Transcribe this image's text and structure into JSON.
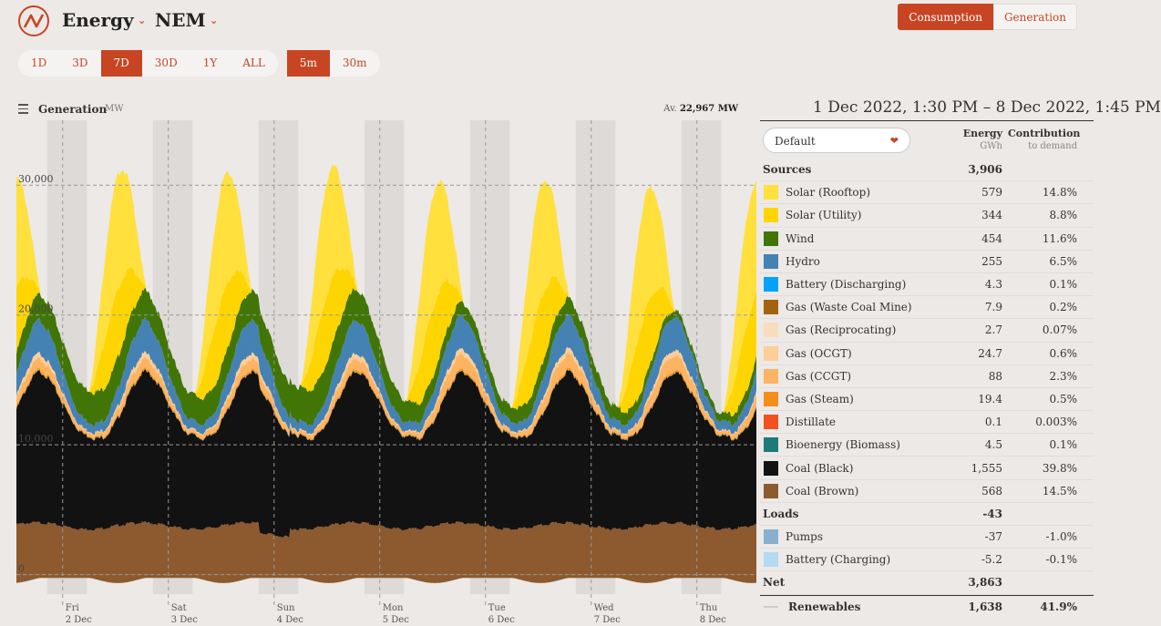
{
  "header": {
    "region_title": "Energy",
    "market_title": "NEM",
    "toggle": [
      "Consumption",
      "Generation"
    ],
    "toggle_active": "Consumption"
  },
  "range": {
    "periods": [
      "1D",
      "3D",
      "7D",
      "30D",
      "1Y",
      "ALL"
    ],
    "period_active": "7D",
    "intervals": [
      "5m",
      "30m"
    ],
    "interval_active": "5m"
  },
  "chart_head": {
    "title": "Generation",
    "unit": "MW",
    "avg_label": "Av.",
    "avg_value": "22,967 MW"
  },
  "chart_data": {
    "type": "area",
    "title": "Generation",
    "ylabel": "MW",
    "ylim": [
      -1500,
      35000
    ],
    "yticks": [
      0,
      10000,
      20000,
      30000
    ],
    "ytick_labels": [
      "0",
      "10,000",
      "20,000",
      "30,000"
    ],
    "days": [
      {
        "dow": "Fri",
        "date": "2 Dec"
      },
      {
        "dow": "Sat",
        "date": "3 Dec"
      },
      {
        "dow": "Sun",
        "date": "4 Dec"
      },
      {
        "dow": "Mon",
        "date": "5 Dec"
      },
      {
        "dow": "Tue",
        "date": "6 Dec"
      },
      {
        "dow": "Wed",
        "date": "7 Dec"
      },
      {
        "dow": "Thu",
        "date": "8 Dec"
      }
    ],
    "start_hour": 13.5,
    "hours": 168,
    "series": [
      {
        "name": "Coal (Brown)",
        "color": "#8C5A2E",
        "avg_mw": 3381
      },
      {
        "name": "Coal (Black)",
        "color": "#121212",
        "avg_mw": 9256
      },
      {
        "name": "Bioenergy (Biomass)",
        "color": "#1D7A7A",
        "avg_mw": 27
      },
      {
        "name": "Gas (Steam)",
        "color": "#F48E1B",
        "avg_mw": 115
      },
      {
        "name": "Gas (CCGT)",
        "color": "#FDB462",
        "avg_mw": 524
      },
      {
        "name": "Gas (OCGT)",
        "color": "#FFCD96",
        "avg_mw": 147
      },
      {
        "name": "Gas (Reciprocating)",
        "color": "#F9DCBC",
        "avg_mw": 16
      },
      {
        "name": "Hydro",
        "color": "#4582B4",
        "avg_mw": 1518
      },
      {
        "name": "Wind",
        "color": "#417505",
        "avg_mw": 2702
      },
      {
        "name": "Solar (Utility)",
        "color": "#FED500",
        "avg_mw": 2048
      },
      {
        "name": "Solar (Rooftop)",
        "color": "#FFE03D",
        "avg_mw": 3446
      }
    ]
  },
  "table": {
    "date_range": "1 Dec 2022, 1:30 PM – 8 Dec 2022, 1:45 PM",
    "select_value": "Default",
    "col_energy": "Energy",
    "col_energy_unit": "GWh",
    "col_contrib": "Contribution",
    "col_contrib_unit": "to demand",
    "rows": [
      {
        "kind": "group",
        "label": "Sources",
        "energy": "3,906",
        "pct": ""
      },
      {
        "kind": "item",
        "label": "Solar (Rooftop)",
        "color": "#FFE03D",
        "energy": "579",
        "pct": "14.8%"
      },
      {
        "kind": "item",
        "label": "Solar (Utility)",
        "color": "#FED500",
        "energy": "344",
        "pct": "8.8%"
      },
      {
        "kind": "item",
        "label": "Wind",
        "color": "#417505",
        "energy": "454",
        "pct": "11.6%"
      },
      {
        "kind": "item",
        "label": "Hydro",
        "color": "#4582B4",
        "energy": "255",
        "pct": "6.5%"
      },
      {
        "kind": "item",
        "label": "Battery (Discharging)",
        "color": "#00A2FA",
        "energy": "4.3",
        "pct": "0.1%"
      },
      {
        "kind": "item",
        "label": "Gas (Waste Coal Mine)",
        "color": "#A3620F",
        "energy": "7.9",
        "pct": "0.2%"
      },
      {
        "kind": "item",
        "label": "Gas (Reciprocating)",
        "color": "#F9DCBC",
        "energy": "2.7",
        "pct": "0.07%"
      },
      {
        "kind": "item",
        "label": "Gas (OCGT)",
        "color": "#FFCD96",
        "energy": "24.7",
        "pct": "0.6%"
      },
      {
        "kind": "item",
        "label": "Gas (CCGT)",
        "color": "#FDB462",
        "energy": "88",
        "pct": "2.3%"
      },
      {
        "kind": "item",
        "label": "Gas (Steam)",
        "color": "#F48E1B",
        "energy": "19.4",
        "pct": "0.5%"
      },
      {
        "kind": "item",
        "label": "Distillate",
        "color": "#F35020",
        "energy": "0.1",
        "pct": "0.003%"
      },
      {
        "kind": "item",
        "label": "Bioenergy (Biomass)",
        "color": "#1D7A7A",
        "energy": "4.5",
        "pct": "0.1%"
      },
      {
        "kind": "item",
        "label": "Coal (Black)",
        "color": "#121212",
        "energy": "1,555",
        "pct": "39.8%"
      },
      {
        "kind": "item",
        "label": "Coal (Brown)",
        "color": "#8C5A2E",
        "energy": "568",
        "pct": "14.5%"
      },
      {
        "kind": "group",
        "label": "Loads",
        "energy": "-43",
        "pct": ""
      },
      {
        "kind": "item",
        "label": "Pumps",
        "color": "#88AFD0",
        "energy": "-37",
        "pct": "-1.0%"
      },
      {
        "kind": "item",
        "label": "Battery (Charging)",
        "color": "#B2DAF1",
        "energy": "-5.2",
        "pct": "-0.1%"
      },
      {
        "kind": "group",
        "label": "Net",
        "energy": "3,863",
        "pct": ""
      },
      {
        "kind": "renew",
        "label": "Renewables",
        "energy": "1,638",
        "pct": "41.9%"
      }
    ]
  }
}
